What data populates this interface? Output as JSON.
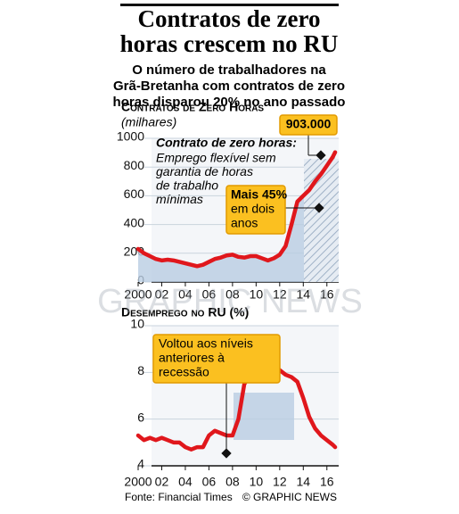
{
  "header": {
    "title_lines": [
      "Contratos de zero",
      "horas crescem no RU"
    ],
    "subtitle_lines": [
      "O número de trabalhadores na",
      "Grã-Bretanha com contratos de zero",
      "horas disparou 20% no ano passado"
    ]
  },
  "chart_data": [
    {
      "type": "line",
      "title": "Contratos de Zero Horas",
      "subtitle": "(milhares)",
      "x": [
        2000,
        2000.5,
        2001,
        2001.5,
        2002,
        2002.5,
        2003,
        2003.5,
        2004,
        2004.5,
        2005,
        2005.5,
        2006,
        2006.5,
        2007,
        2007.5,
        2008,
        2008.5,
        2009,
        2009.5,
        2010,
        2010.5,
        2011,
        2011.5,
        2012,
        2012.5,
        2013,
        2013.5,
        2014,
        2014.5,
        2015,
        2015.5,
        2016,
        2016.5,
        2016.7
      ],
      "series": [
        {
          "color": "#e0171c",
          "values": [
            230,
            200,
            180,
            160,
            150,
            155,
            150,
            140,
            130,
            120,
            110,
            120,
            140,
            160,
            170,
            185,
            190,
            175,
            170,
            180,
            180,
            165,
            150,
            165,
            190,
            250,
            400,
            560,
            600,
            640,
            700,
            750,
            810,
            870,
            903
          ],
          "value_labels": [
            null,
            null,
            null,
            null,
            null,
            null,
            null,
            null,
            null,
            null,
            null,
            null,
            null,
            null,
            null,
            null,
            null,
            null,
            null,
            null,
            null,
            null,
            null,
            null,
            null,
            null,
            null,
            null,
            null,
            null,
            null,
            null,
            null,
            null,
            "903.000"
          ]
        }
      ],
      "xlim": [
        2000,
        2017
      ],
      "ylim": [
        0,
        1000
      ],
      "xticks": [
        {
          "value": 2000,
          "label": "2000"
        },
        {
          "value": 2002,
          "label": "02"
        },
        {
          "value": 2004,
          "label": "04"
        },
        {
          "value": 2006,
          "label": "06"
        },
        {
          "value": 2008,
          "label": "08"
        },
        {
          "value": 2010,
          "label": "10"
        },
        {
          "value": 2012,
          "label": "12"
        },
        {
          "value": 2014,
          "label": "14"
        },
        {
          "value": 2016,
          "label": "16"
        }
      ],
      "yticks": [
        0,
        200,
        400,
        600,
        800,
        1000
      ],
      "grid": true,
      "note_title": "Contrato de zero horas:",
      "note_lines": [
        "Emprego flexível sem",
        "garantia de horas",
        "de trabalho",
        "mínimas"
      ],
      "callout_lines": [
        "Mais 45%",
        "em dois",
        "anos"
      ]
    },
    {
      "type": "line",
      "title": "Desemprego no RU (%)",
      "x": [
        2000,
        2000.5,
        2001,
        2001.5,
        2002,
        2002.5,
        2003,
        2003.5,
        2004,
        2004.5,
        2005,
        2005.5,
        2006,
        2006.5,
        2007,
        2007.5,
        2008,
        2008.5,
        2009,
        2009.5,
        2010,
        2010.5,
        2011,
        2011.5,
        2012,
        2012.5,
        2013,
        2013.5,
        2014,
        2014.5,
        2015,
        2015.5,
        2016,
        2016.5,
        2016.7
      ],
      "series": [
        {
          "color": "#e0171c",
          "values": [
            5.3,
            5.1,
            5.2,
            5.1,
            5.2,
            5.1,
            5.0,
            5.0,
            4.8,
            4.7,
            4.8,
            4.8,
            5.3,
            5.5,
            5.4,
            5.3,
            5.3,
            6.0,
            7.5,
            7.9,
            7.9,
            7.8,
            8.0,
            8.3,
            8.1,
            7.9,
            7.8,
            7.6,
            6.9,
            6.1,
            5.6,
            5.3,
            5.1,
            4.9,
            4.8
          ]
        }
      ],
      "xlim": [
        2000,
        2017
      ],
      "ylim": [
        4,
        10
      ],
      "xticks": [
        {
          "value": 2000,
          "label": "2000"
        },
        {
          "value": 2002,
          "label": "02"
        },
        {
          "value": 2004,
          "label": "04"
        },
        {
          "value": 2006,
          "label": "06"
        },
        {
          "value": 2008,
          "label": "08"
        },
        {
          "value": 2010,
          "label": "10"
        },
        {
          "value": 2012,
          "label": "12"
        },
        {
          "value": 2014,
          "label": "14"
        },
        {
          "value": 2016,
          "label": "16"
        }
      ],
      "yticks": [
        4,
        6,
        8,
        10
      ],
      "grid": true,
      "callout_lines": [
        "Voltou aos níveis",
        "anteriores à",
        "recessão"
      ]
    }
  ],
  "footer": {
    "source": "Fonte: Financial Times",
    "credit": "© GRAPHIC NEWS",
    "watermark": "GRAPHIC NEWS"
  }
}
